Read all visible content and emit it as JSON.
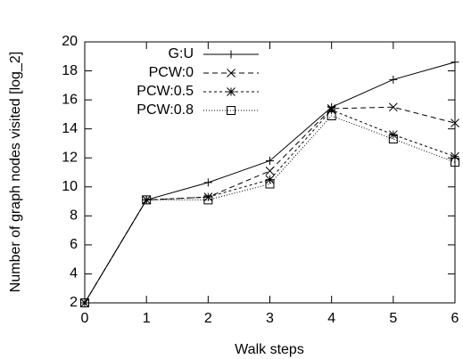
{
  "chart_data": {
    "type": "line",
    "xlabel": "Walk steps",
    "ylabel": "Number of graph nodes visited [log_2]",
    "x": [
      0,
      1,
      2,
      3,
      4,
      5,
      6
    ],
    "xlim": [
      0,
      6
    ],
    "xticks": [
      0,
      1,
      2,
      3,
      4,
      5,
      6
    ],
    "ylim": [
      2,
      20
    ],
    "yticks": [
      2,
      4,
      6,
      8,
      10,
      12,
      14,
      16,
      18,
      20
    ],
    "grid": false,
    "legend": "upper-left",
    "series": [
      {
        "name": "G:U",
        "color": "#000000",
        "dash": "none",
        "marker": "plus",
        "values": [
          2,
          9.1,
          10.3,
          11.8,
          15.5,
          17.4,
          18.6
        ]
      },
      {
        "name": "PCW:0",
        "color": "#000000",
        "dash": "6,4",
        "marker": "cross",
        "values": [
          2,
          9.1,
          9.3,
          11.1,
          15.4,
          15.5,
          14.4
        ]
      },
      {
        "name": "PCW:0.5",
        "color": "#000000",
        "dash": "3,3",
        "marker": "star",
        "values": [
          2,
          9.1,
          9.3,
          10.5,
          15.3,
          13.6,
          12.1
        ]
      },
      {
        "name": "PCW:0.8",
        "color": "#000000",
        "dash": "1,2",
        "marker": "square",
        "values": [
          2,
          9.1,
          9.1,
          10.2,
          14.9,
          13.3,
          11.7
        ]
      }
    ]
  }
}
